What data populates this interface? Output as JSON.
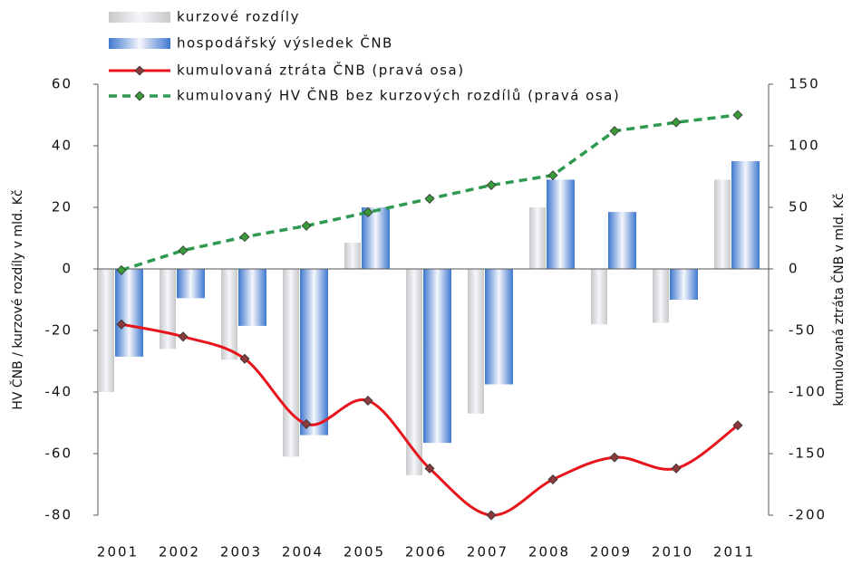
{
  "chart_data": {
    "type": "bar-line",
    "categories": [
      "2001",
      "2002",
      "2003",
      "2004",
      "2005",
      "2006",
      "2007",
      "2008",
      "2009",
      "2010",
      "2011"
    ],
    "series": [
      {
        "name": "kurzové rozdíly",
        "type": "bar",
        "color": "#c8c8c8",
        "values": [
          -40,
          -26,
          -29.5,
          -61,
          8.5,
          -67,
          -47,
          20,
          -18,
          -17.5,
          29
        ]
      },
      {
        "name": "hospodářský výsledek ČNB",
        "type": "bar",
        "color": "#3f78d0",
        "values": [
          -28.5,
          -9.5,
          -18.5,
          -54,
          20,
          -56.5,
          -37.5,
          29,
          18.5,
          -10,
          35
        ]
      },
      {
        "name": "kumulovaná ztráta ČNB (pravá osa)",
        "type": "line",
        "axis": "y2",
        "color": "#e8141c",
        "values": [
          -45,
          -55,
          -73,
          -126,
          -107,
          -162,
          -200,
          -171,
          -153,
          -162,
          -127
        ]
      },
      {
        "name": "kumulovaný HV ČNB bez kurzových rozdílů (pravá osa)",
        "type": "line",
        "axis": "y2",
        "dashed": true,
        "color": "#2e9a50",
        "values": [
          -1,
          15,
          26,
          35,
          46,
          57,
          68,
          76,
          112,
          119,
          125
        ]
      }
    ],
    "ylabel": "HV ČNB / kurzové rozdíly v mld. Kč",
    "y2label": "kumulovaná ztráta ČNB v mld. Kč",
    "ylim": [
      -80,
      60
    ],
    "yticks": [
      -80,
      -60,
      -40,
      -20,
      0,
      20,
      40,
      60
    ],
    "y2lim": [
      -200,
      150
    ],
    "y2ticks": [
      -200,
      -150,
      -100,
      -50,
      0,
      50,
      100,
      150
    ]
  }
}
